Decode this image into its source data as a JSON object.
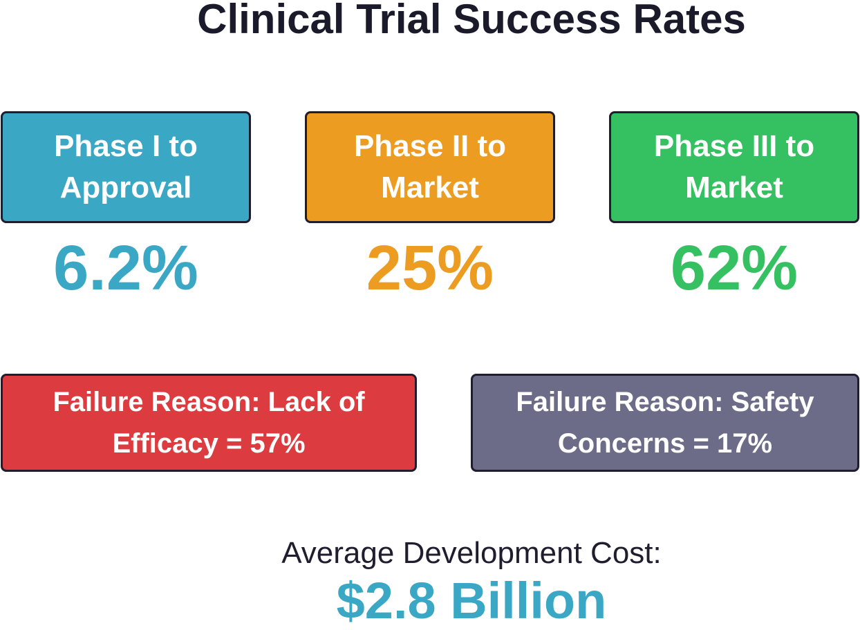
{
  "title": "Clinical Trial Success Rates",
  "phases": [
    {
      "label": "Phase I to Approval",
      "value": "6.2%",
      "color": "#3aa7c4"
    },
    {
      "label": "Phase II to Market",
      "value": "25%",
      "color": "#ec9c21"
    },
    {
      "label": "Phase III to Market",
      "value": "62%",
      "color": "#35c062"
    }
  ],
  "failures": [
    {
      "label": "Failure Reason: Lack of Efficacy = 57%",
      "color": "#dc3c40"
    },
    {
      "label": "Failure Reason: Safety Concerns = 17%",
      "color": "#6c6c88"
    }
  ],
  "cost": {
    "label": "Average Development Cost:",
    "value": "$2.8 Billion",
    "color": "#3aa7c4"
  }
}
